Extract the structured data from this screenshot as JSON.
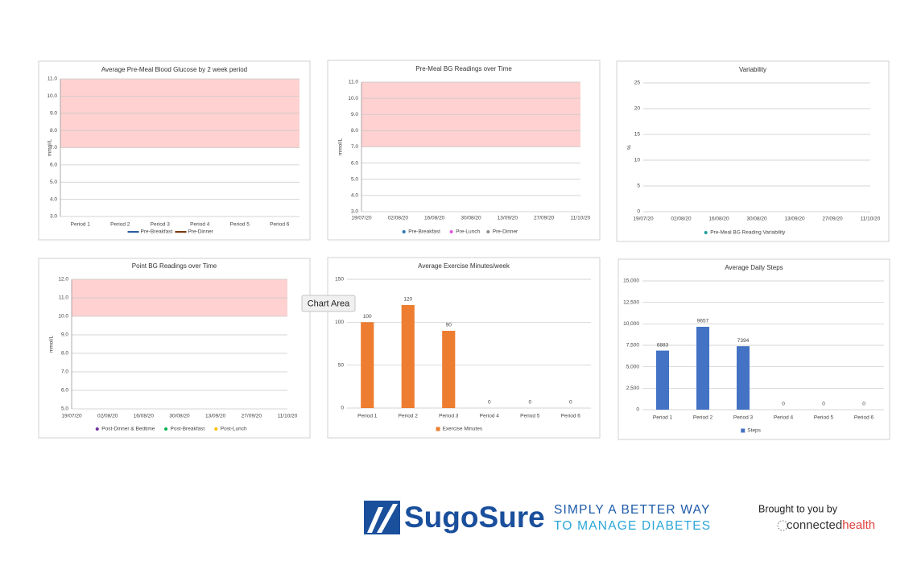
{
  "chart_data": [
    {
      "type": "line",
      "title": "Average Pre-Meal Blood Glucose by 2 week period",
      "ylabel": "mmol/L",
      "categories": [
        "Period 1",
        "Period 2",
        "Period 3",
        "Period 4",
        "Period 5",
        "Period 6"
      ],
      "ylim": [
        3,
        11
      ],
      "yticks": [
        {
          "value": 3,
          "label": "3.0"
        },
        {
          "value": 4,
          "label": "4.0"
        },
        {
          "value": 5,
          "label": "5.0"
        },
        {
          "value": 6,
          "label": "6.0"
        },
        {
          "value": 7,
          "label": "7.0"
        },
        {
          "value": 8,
          "label": "8.0"
        },
        {
          "value": 9,
          "label": "9.0"
        },
        {
          "value": 10,
          "label": "10.0"
        },
        {
          "value": 11,
          "label": "11.0"
        }
      ],
      "grid": true,
      "band": [
        7,
        11
      ],
      "band_color": "#ffd1d1",
      "legend": "bottom",
      "series": [
        {
          "name": "Pre-Breakfast",
          "color": "#2e5f9e",
          "values": [
            null,
            null,
            null,
            null,
            null,
            null
          ]
        },
        {
          "name": "Pre-Dinner",
          "color": "#7a3b12",
          "values": [
            null,
            null,
            null,
            null,
            null,
            null
          ]
        }
      ]
    },
    {
      "type": "scatter",
      "title": "Pre-Meal BG Readings over Time",
      "ylabel": "mmol/L",
      "categories": [
        "19/07/20",
        "02/08/20",
        "16/08/20",
        "30/08/20",
        "13/09/20",
        "27/09/20",
        "11/10/20"
      ],
      "ylim": [
        3,
        11
      ],
      "yticks": [
        {
          "value": 3,
          "label": "3.0"
        },
        {
          "value": 4,
          "label": "4.0"
        },
        {
          "value": 5,
          "label": "5.0"
        },
        {
          "value": 6,
          "label": "6.0"
        },
        {
          "value": 7,
          "label": "7.0"
        },
        {
          "value": 8,
          "label": "8.0"
        },
        {
          "value": 9,
          "label": "9.0"
        },
        {
          "value": 10,
          "label": "10.0"
        },
        {
          "value": 11,
          "label": "11.0"
        }
      ],
      "grid": true,
      "band": [
        7,
        11
      ],
      "band_color": "#ffd1d1",
      "legend": "bottom",
      "series": [
        {
          "name": "Pre-Breakfast",
          "color": "#2e75b6",
          "values": [
            null,
            null,
            null,
            null,
            null,
            null,
            null
          ]
        },
        {
          "name": "Pre-Lunch",
          "color": "#e055e0",
          "values": [
            null,
            null,
            null,
            null,
            null,
            null,
            null
          ]
        },
        {
          "name": "Pre-Dinner",
          "color": "#8c8c8c",
          "values": [
            null,
            null,
            null,
            null,
            null,
            null,
            null
          ]
        }
      ]
    },
    {
      "type": "scatter",
      "title": "Variability",
      "ylabel": "%",
      "categories": [
        "19/07/20",
        "02/08/20",
        "16/08/20",
        "30/08/20",
        "13/09/20",
        "27/09/20",
        "11/10/20"
      ],
      "ylim": [
        0,
        25
      ],
      "yticks": [
        0,
        5,
        10,
        15,
        20,
        25
      ],
      "grid": true,
      "legend": "bottom",
      "series": [
        {
          "name": "Pre-Meal BG  Reading Variability",
          "color": "#1fa0a0",
          "values": [
            null,
            null,
            null,
            null,
            null,
            null,
            null
          ]
        }
      ]
    },
    {
      "type": "scatter",
      "title": "Point BG Readings over Time",
      "ylabel": "mmol/L",
      "categories": [
        "19/07/20",
        "02/08/20",
        "16/08/20",
        "30/08/20",
        "13/09/20",
        "27/09/20",
        "11/10/20"
      ],
      "ylim": [
        5,
        12
      ],
      "yticks": [
        {
          "value": 5,
          "label": "5.0"
        },
        {
          "value": 6,
          "label": "6.0"
        },
        {
          "value": 7,
          "label": "7.0"
        },
        {
          "value": 8,
          "label": "8.0"
        },
        {
          "value": 9,
          "label": "9.0"
        },
        {
          "value": 10,
          "label": "10.0"
        },
        {
          "value": 11,
          "label": "11.0"
        },
        {
          "value": 12,
          "label": "12.0"
        }
      ],
      "grid": true,
      "band": [
        10,
        12
      ],
      "band_color": "#ffd1d1",
      "legend": "bottom",
      "series": [
        {
          "name": "Post-Dinner & Bedtime",
          "color": "#7030a0",
          "values": [
            null,
            null,
            null,
            null,
            null,
            null,
            null
          ]
        },
        {
          "name": "Post-Breakfast",
          "color": "#00b050",
          "values": [
            null,
            null,
            null,
            null,
            null,
            null,
            null
          ]
        },
        {
          "name": "Post-Lunch",
          "color": "#ffc000",
          "values": [
            null,
            null,
            null,
            null,
            null,
            null,
            null
          ]
        }
      ]
    },
    {
      "type": "bar",
      "title": "Average Exercise Minutes/week",
      "categories": [
        "Period 1",
        "Period 2",
        "Period 3",
        "Period 4",
        "Period 5",
        "Period 6"
      ],
      "ylim": [
        0,
        150
      ],
      "yticks": [
        0,
        50,
        100,
        150
      ],
      "grid": true,
      "legend": "bottom",
      "series": [
        {
          "name": "Exercise Minutes",
          "color": "#ed7d31",
          "values": [
            100,
            120,
            90,
            0,
            0,
            0
          ]
        }
      ]
    },
    {
      "type": "bar",
      "title": "Average Daily Steps",
      "categories": [
        "Period 1",
        "Period 2",
        "Period 3",
        "Period 4",
        "Period 5",
        "Period 6"
      ],
      "ylim": [
        0,
        15000
      ],
      "yticks": [
        0,
        {
          "value": 2500,
          "label": "2,500"
        },
        {
          "value": 5000,
          "label": "5,000"
        },
        {
          "value": 7500,
          "label": "7,500"
        },
        {
          "value": 10000,
          "label": "10,000"
        },
        {
          "value": 12500,
          "label": "12,500"
        },
        {
          "value": 15000,
          "label": "15,000"
        }
      ],
      "grid": true,
      "legend": "bottom",
      "series": [
        {
          "name": "Steps",
          "color": "#4472c4",
          "values": [
            6883,
            9657,
            7394,
            0,
            0,
            0
          ]
        }
      ]
    }
  ],
  "tooltip": "Chart Area",
  "footer": {
    "brand": "SugoSure",
    "tagline": [
      "SIMPLY A BETTER WAY",
      "TO MANAGE DIABETES"
    ],
    "credit": "Brought to you by",
    "partner": [
      "connected",
      "health"
    ]
  }
}
